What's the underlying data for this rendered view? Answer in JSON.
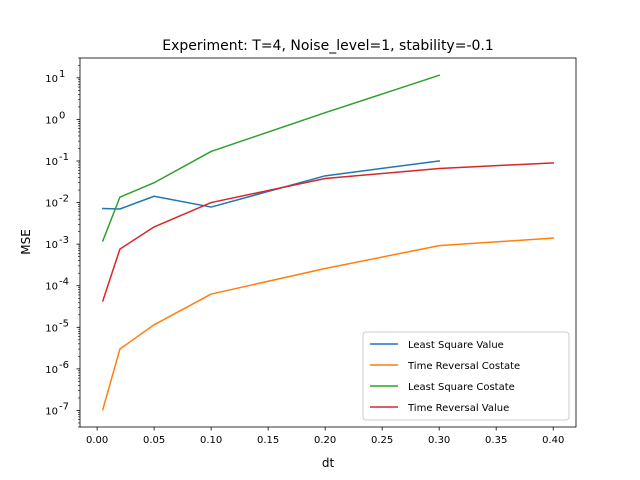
{
  "chart_data": {
    "type": "line",
    "title": "Experiment: T=4, Noise_level=1, stability=-0.1",
    "xlabel": "dt",
    "ylabel": "MSE",
    "xscale": "linear",
    "yscale": "log",
    "xlim": [
      -0.015,
      0.42
    ],
    "ylim": [
      4e-08,
      30
    ],
    "xticks": [
      0.0,
      0.05,
      0.1,
      0.15,
      0.2,
      0.25,
      0.3,
      0.35,
      0.4
    ],
    "xtick_labels": [
      "0.00",
      "0.05",
      "0.10",
      "0.15",
      "0.20",
      "0.25",
      "0.30",
      "0.35",
      "0.40"
    ],
    "yticks_exponents": [
      -7,
      -6,
      -5,
      -4,
      -3,
      -2,
      -1,
      0,
      1
    ],
    "ytick_base": "10",
    "grid": false,
    "legend_position": "lower-right",
    "series": [
      {
        "name": "Least Square Value",
        "color": "#1f77b4",
        "x": [
          0.005,
          0.02,
          0.05,
          0.1,
          0.2,
          0.3
        ],
        "y": [
          0.0072,
          0.007,
          0.0142,
          0.0078,
          0.044,
          0.1
        ]
      },
      {
        "name": "Time Reversal Costate",
        "color": "#ff7f0e",
        "x": [
          0.005,
          0.02,
          0.05,
          0.1,
          0.2,
          0.3,
          0.4
        ],
        "y": [
          1.05e-07,
          3e-06,
          1.15e-05,
          6.3e-05,
          0.00026,
          0.00092,
          0.0014
        ]
      },
      {
        "name": "Least Square Costate",
        "color": "#2ca02c",
        "x": [
          0.005,
          0.02,
          0.05,
          0.1,
          0.2,
          0.3
        ],
        "y": [
          0.0012,
          0.0135,
          0.03,
          0.17,
          1.45,
          11.5
        ]
      },
      {
        "name": "Time Reversal Value",
        "color": "#d62728",
        "x": [
          0.005,
          0.02,
          0.05,
          0.1,
          0.2,
          0.3,
          0.4
        ],
        "y": [
          4.3e-05,
          0.00076,
          0.0026,
          0.01,
          0.038,
          0.066,
          0.09
        ]
      }
    ]
  }
}
